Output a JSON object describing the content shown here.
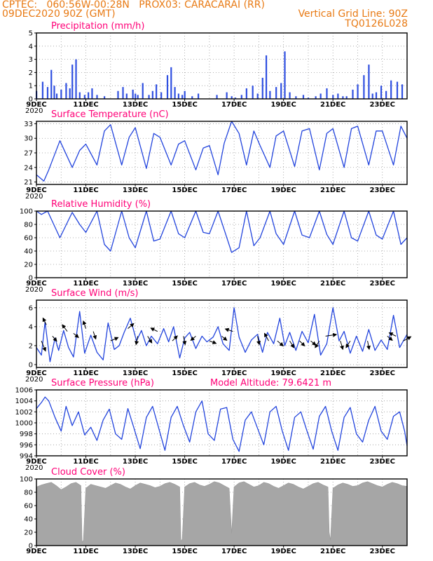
{
  "header": {
    "line1": "CPTEC:   060:56W-00:28N   PROX03: CARACARAI (RR)",
    "line2": "09DEC2020 90Z (GMT)",
    "grid_note": "Vertical Grid Line: 90Z",
    "code": "TQ0126L028"
  },
  "colors": {
    "header": "#e87a14",
    "title": "#ff0077",
    "line": "#2244dd",
    "bar": "#2f4fe0",
    "cloud": "#a6a6a6",
    "arrow": "#000000"
  },
  "chart_data": [
    {
      "type": "bar",
      "title": "Precipitation (mm/h)",
      "ylim": [
        0,
        5
      ],
      "yticks": [
        "0",
        "1",
        "2",
        "3",
        "4",
        "5"
      ],
      "x_ticks": [
        "9DEC",
        "11DEC",
        "13DEC",
        "15DEC",
        "17DEC",
        "19DEC",
        "21DEC",
        "23DEC"
      ],
      "year_label": "2020",
      "grid": true,
      "x_days": [
        9.0,
        9.25,
        9.45,
        9.6,
        9.72,
        9.82,
        10.0,
        10.2,
        10.35,
        10.45,
        10.6,
        10.75,
        10.95,
        11.1,
        11.25,
        11.45,
        11.75,
        12.3,
        12.5,
        12.65,
        12.9,
        13.0,
        13.1,
        13.3,
        13.55,
        13.7,
        13.85,
        14.05,
        14.3,
        14.45,
        14.6,
        14.75,
        14.9,
        15.0,
        15.3,
        15.55,
        16.3,
        16.7,
        16.9,
        17.05,
        17.3,
        17.5,
        17.75,
        17.95,
        18.15,
        18.3,
        18.45,
        18.7,
        18.9,
        19.05,
        19.25,
        19.5,
        19.8,
        20.0,
        20.3,
        20.5,
        20.75,
        21.0,
        21.2,
        21.4,
        21.55,
        21.8,
        22.0,
        22.25,
        22.45,
        22.6,
        22.75,
        22.95,
        23.15,
        23.35,
        23.6,
        23.8
      ],
      "values": [
        0.6,
        1.3,
        0.9,
        2.2,
        1.0,
        0.4,
        0.7,
        1.2,
        0.8,
        2.6,
        3.0,
        0.5,
        0.3,
        0.5,
        0.8,
        0.3,
        0.2,
        0.6,
        0.9,
        0.4,
        0.7,
        0.4,
        0.3,
        1.2,
        0.3,
        0.6,
        1.1,
        0.5,
        1.8,
        2.4,
        0.9,
        0.4,
        0.3,
        0.6,
        0.2,
        0.4,
        0.3,
        0.5,
        0.2,
        0.1,
        0.3,
        0.8,
        1.0,
        0.4,
        1.6,
        3.3,
        0.6,
        0.9,
        1.2,
        3.6,
        0.5,
        0.2,
        0.3,
        0.1,
        0.2,
        0.4,
        0.8,
        0.3,
        0.4,
        0.2,
        0.2,
        0.7,
        1.1,
        1.8,
        2.6,
        0.4,
        0.5,
        1.0,
        0.6,
        1.4,
        1.3,
        1.1
      ]
    },
    {
      "type": "line",
      "title": "Surface Temperature (nC)",
      "ylim": [
        20.5,
        33.5
      ],
      "yticks": [
        "21",
        "24",
        "27",
        "30",
        "33"
      ],
      "x_ticks": [
        "9DEC",
        "11DEC",
        "13DEC",
        "15DEC",
        "17DEC",
        "19DEC",
        "21DEC",
        "23DEC"
      ],
      "year_label": "2020",
      "grid": true,
      "x_days": [
        9.0,
        9.3,
        9.5,
        9.95,
        10.45,
        10.75,
        11.0,
        11.45,
        11.75,
        12.0,
        12.45,
        12.75,
        13.0,
        13.45,
        13.75,
        14.0,
        14.45,
        14.75,
        15.0,
        15.45,
        15.75,
        16.0,
        16.35,
        16.6,
        16.9,
        17.2,
        17.5,
        17.8,
        18.05,
        18.45,
        18.7,
        19.0,
        19.45,
        19.75,
        20.05,
        20.45,
        20.75,
        21.0,
        21.45,
        21.75,
        22.0,
        22.45,
        22.75,
        23.0,
        23.45,
        23.75,
        24.0
      ],
      "values": [
        22.5,
        21.2,
        23.5,
        29.5,
        24.0,
        27.5,
        28.8,
        24.5,
        31.5,
        32.8,
        24.5,
        30.2,
        32.2,
        23.8,
        31.0,
        30.2,
        24.5,
        28.8,
        29.5,
        23.5,
        28.0,
        28.5,
        22.5,
        29.0,
        33.5,
        31.0,
        24.5,
        31.5,
        28.5,
        24.0,
        30.5,
        31.5,
        24.2,
        31.5,
        32.0,
        23.5,
        31.0,
        32.0,
        24.0,
        32.0,
        32.5,
        24.5,
        31.5,
        31.5,
        24.5,
        32.5,
        30.0
      ]
    },
    {
      "type": "line",
      "title": "Relative Humidity (%)",
      "ylim": [
        0,
        100
      ],
      "yticks": [
        "0",
        "20",
        "40",
        "60",
        "80",
        "100"
      ],
      "x_ticks": [
        "9DEC",
        "11DEC",
        "13DEC",
        "15DEC",
        "17DEC",
        "19DEC",
        "21DEC",
        "23DEC"
      ],
      "year_label": "2020",
      "grid": true,
      "x_days": [
        9.0,
        9.2,
        9.45,
        9.95,
        10.45,
        10.75,
        11.0,
        11.45,
        11.75,
        12.0,
        12.45,
        12.75,
        13.0,
        13.45,
        13.75,
        14.0,
        14.45,
        14.75,
        15.0,
        15.45,
        15.75,
        16.0,
        16.35,
        16.6,
        16.9,
        17.2,
        17.5,
        17.8,
        18.05,
        18.45,
        18.7,
        19.0,
        19.45,
        19.75,
        20.05,
        20.45,
        20.75,
        21.0,
        21.45,
        21.75,
        22.0,
        22.45,
        22.75,
        23.0,
        23.45,
        23.75,
        24.0
      ],
      "values": [
        100,
        95,
        100,
        60,
        98,
        80,
        68,
        100,
        50,
        40,
        100,
        60,
        45,
        100,
        55,
        58,
        100,
        66,
        60,
        100,
        68,
        66,
        100,
        72,
        38,
        45,
        100,
        48,
        60,
        100,
        66,
        50,
        100,
        64,
        60,
        100,
        65,
        50,
        100,
        60,
        55,
        100,
        64,
        58,
        100,
        50,
        60
      ]
    },
    {
      "type": "line",
      "title": "Surface Wind (m/s)",
      "ylim": [
        -0.3,
        6.8
      ],
      "yticks": [
        "0",
        "2",
        "4",
        "6"
      ],
      "x_ticks": [
        "9DEC",
        "11DEC",
        "13DEC",
        "15DEC",
        "17DEC",
        "19DEC",
        "21DEC",
        "23DEC"
      ],
      "year_label": "2020",
      "grid": true,
      "x_days": [
        9.0,
        9.2,
        9.35,
        9.55,
        9.75,
        9.9,
        10.1,
        10.3,
        10.5,
        10.75,
        10.95,
        11.2,
        11.45,
        11.7,
        11.9,
        12.15,
        12.35,
        12.55,
        12.8,
        13.05,
        13.25,
        13.45,
        13.65,
        13.9,
        14.15,
        14.35,
        14.55,
        14.8,
        15.0,
        15.2,
        15.45,
        15.7,
        15.9,
        16.15,
        16.35,
        16.55,
        16.8,
        17.0,
        17.2,
        17.45,
        17.7,
        17.95,
        18.15,
        18.35,
        18.6,
        18.85,
        19.05,
        19.25,
        19.5,
        19.75,
        20.0,
        20.25,
        20.5,
        20.75,
        21.0,
        21.25,
        21.45,
        21.7,
        21.95,
        22.2,
        22.45,
        22.7,
        22.95,
        23.2,
        23.45,
        23.7,
        24.0
      ],
      "values": [
        1.8,
        1.0,
        4.5,
        0.3,
        2.8,
        1.5,
        3.6,
        1.8,
        0.8,
        5.6,
        1.2,
        3.1,
        1.3,
        0.5,
        4.4,
        1.6,
        2.0,
        3.4,
        4.9,
        2.5,
        3.6,
        2.0,
        3.0,
        2.2,
        3.8,
        2.4,
        4.0,
        0.7,
        2.8,
        3.4,
        1.7,
        3.0,
        2.4,
        2.9,
        4.0,
        2.2,
        1.5,
        6.0,
        2.9,
        1.3,
        2.6,
        3.2,
        1.3,
        3.4,
        2.2,
        4.9,
        2.0,
        3.4,
        1.5,
        3.5,
        2.3,
        5.3,
        1.0,
        2.2,
        6.0,
        2.5,
        3.5,
        1.2,
        3.0,
        1.4,
        3.7,
        1.5,
        2.6,
        1.6,
        5.2,
        1.8,
        3.2
      ],
      "vectors": [
        {
          "x": 9.2,
          "y": 2.5,
          "u": 0.5,
          "v": -1.2
        },
        {
          "x": 9.4,
          "y": 4.2,
          "u": -0.4,
          "v": 0.8
        },
        {
          "x": 9.65,
          "y": 3.0,
          "u": 0.5,
          "v": -0.6
        },
        {
          "x": 10.25,
          "y": 3.5,
          "u": -0.6,
          "v": 0.8
        },
        {
          "x": 10.5,
          "y": 3.3,
          "u": 0.6,
          "v": -0.5
        },
        {
          "x": 11.0,
          "y": 3.8,
          "u": -0.3,
          "v": 0.9
        },
        {
          "x": 11.3,
          "y": 3.5,
          "u": 0.3,
          "v": -0.9
        },
        {
          "x": 12.0,
          "y": 2.5,
          "u": 0.9,
          "v": 0.4
        },
        {
          "x": 12.7,
          "y": 3.8,
          "u": 0.7,
          "v": 0.6
        },
        {
          "x": 13.1,
          "y": 3.0,
          "u": -0.2,
          "v": -1.0
        },
        {
          "x": 13.5,
          "y": 3.0,
          "u": 0.5,
          "v": -0.8
        },
        {
          "x": 13.9,
          "y": 3.5,
          "u": -0.8,
          "v": 0.4
        },
        {
          "x": 14.5,
          "y": 2.5,
          "u": 0.6,
          "v": 0.6
        },
        {
          "x": 14.95,
          "y": 3.0,
          "u": 0.2,
          "v": -1.0
        },
        {
          "x": 15.45,
          "y": 3.0,
          "u": -0.6,
          "v": -0.5
        },
        {
          "x": 16.0,
          "y": 2.5,
          "u": 0.8,
          "v": -0.3
        },
        {
          "x": 16.5,
          "y": 3.0,
          "u": 0.6,
          "v": -0.5
        },
        {
          "x": 16.95,
          "y": 3.5,
          "u": -0.9,
          "v": 0.3
        },
        {
          "x": 17.95,
          "y": 3.0,
          "u": 0.2,
          "v": -1.0
        },
        {
          "x": 18.4,
          "y": 2.5,
          "u": -0.5,
          "v": 0.9
        },
        {
          "x": 18.75,
          "y": 2.5,
          "u": 0.7,
          "v": -0.6
        },
        {
          "x": 19.25,
          "y": 2.5,
          "u": 0.5,
          "v": -0.8
        },
        {
          "x": 19.65,
          "y": 2.5,
          "u": 0.6,
          "v": -0.6
        },
        {
          "x": 20.1,
          "y": 2.5,
          "u": 0.6,
          "v": -0.5
        },
        {
          "x": 20.45,
          "y": 2.5,
          "u": -0.5,
          "v": -0.8
        },
        {
          "x": 20.7,
          "y": 3.0,
          "u": 1.3,
          "v": 0.2
        },
        {
          "x": 21.3,
          "y": 2.5,
          "u": 0.3,
          "v": -1.0
        },
        {
          "x": 21.7,
          "y": 2.5,
          "u": -0.5,
          "v": -0.8
        },
        {
          "x": 22.4,
          "y": 2.5,
          "u": 0.2,
          "v": -1.0
        },
        {
          "x": 23.2,
          "y": 3.0,
          "u": 0.6,
          "v": -0.5
        },
        {
          "x": 23.55,
          "y": 3.0,
          "u": -0.8,
          "v": 0.4
        },
        {
          "x": 23.85,
          "y": 2.5,
          "u": 0.9,
          "v": 0.5
        }
      ]
    },
    {
      "type": "line",
      "title": "Surface Pressure (hPa)",
      "annotation": "Model Altitude: 79.6421  m",
      "ylim": [
        994,
        1006
      ],
      "yticks": [
        "994",
        "996",
        "998",
        "1000",
        "1002",
        "1004",
        "1006"
      ],
      "x_ticks": [
        "9DEC",
        "11DEC",
        "13DEC",
        "15DEC",
        "17DEC",
        "19DEC",
        "21DEC",
        "23DEC"
      ],
      "year_label": "2020",
      "grid": true,
      "x_days": [
        9.0,
        9.2,
        9.35,
        9.5,
        9.75,
        10.0,
        10.2,
        10.45,
        10.7,
        10.95,
        11.2,
        11.45,
        11.7,
        11.95,
        12.2,
        12.45,
        12.7,
        12.95,
        13.2,
        13.45,
        13.7,
        13.95,
        14.2,
        14.45,
        14.7,
        14.95,
        15.2,
        15.45,
        15.7,
        15.95,
        16.2,
        16.45,
        16.7,
        16.95,
        17.2,
        17.45,
        17.7,
        17.95,
        18.2,
        18.45,
        18.7,
        18.95,
        19.2,
        19.45,
        19.7,
        19.95,
        20.2,
        20.45,
        20.7,
        20.95,
        21.2,
        21.45,
        21.7,
        21.95,
        22.2,
        22.45,
        22.7,
        22.95,
        23.2,
        23.45,
        23.7,
        23.9,
        24.0
      ],
      "values": [
        1002.6,
        1003.7,
        1004.7,
        1004.0,
        1001.0,
        998.5,
        1003.0,
        999.5,
        1002.0,
        997.8,
        999.2,
        996.8,
        1000.5,
        1002.5,
        998.0,
        997.0,
        1002.6,
        999.0,
        995.3,
        1001.0,
        1003.0,
        999.0,
        995.0,
        1001.0,
        1003.0,
        999.5,
        996.5,
        1002.0,
        1004.0,
        998.0,
        996.8,
        1002.5,
        1002.8,
        997.0,
        994.8,
        1000.5,
        1002.0,
        999.0,
        996.0,
        1002.0,
        1003.0,
        998.5,
        995.0,
        1001.0,
        1002.0,
        998.5,
        995.2,
        1001.2,
        1003.0,
        998.5,
        995.0,
        1001.0,
        1002.8,
        998.0,
        996.5,
        1000.5,
        1003.0,
        998.5,
        997.0,
        1001.2,
        1002.0,
        998.5,
        995.8
      ]
    },
    {
      "type": "area",
      "title": "Cloud Cover (%)",
      "ylim": [
        0,
        100
      ],
      "yticks": [
        "0",
        "20",
        "40",
        "60",
        "80",
        "100"
      ],
      "x_ticks": [
        "9DEC",
        "11DEC",
        "13DEC",
        "15DEC",
        "17DEC",
        "19DEC",
        "21DEC",
        "23DEC"
      ],
      "grid": true,
      "x_days": [
        9.0,
        9.2,
        9.4,
        9.6,
        9.8,
        10.0,
        10.2,
        10.4,
        10.6,
        10.8,
        10.85,
        10.9,
        11.0,
        11.2,
        11.4,
        11.6,
        11.8,
        12.0,
        12.2,
        12.4,
        12.6,
        12.8,
        13.0,
        13.2,
        13.4,
        13.6,
        13.8,
        14.0,
        14.2,
        14.4,
        14.6,
        14.8,
        14.85,
        14.9,
        15.0,
        15.2,
        15.4,
        15.6,
        15.8,
        16.0,
        16.2,
        16.4,
        16.6,
        16.8,
        16.9,
        17.0,
        17.2,
        17.4,
        17.6,
        17.8,
        18.0,
        18.2,
        18.4,
        18.6,
        18.8,
        19.0,
        19.2,
        19.4,
        19.6,
        19.8,
        20.0,
        20.2,
        20.4,
        20.6,
        20.8,
        20.85,
        20.9,
        21.0,
        21.2,
        21.4,
        21.6,
        21.8,
        22.0,
        22.2,
        22.4,
        22.6,
        22.8,
        23.0,
        23.2,
        23.4,
        23.6,
        23.8,
        24.0
      ],
      "values": [
        88,
        91,
        93,
        95,
        90,
        84,
        88,
        93,
        95,
        90,
        5,
        8,
        86,
        92,
        90,
        88,
        86,
        90,
        94,
        92,
        88,
        85,
        90,
        94,
        92,
        90,
        87,
        89,
        93,
        95,
        92,
        88,
        6,
        10,
        88,
        93,
        95,
        91,
        89,
        92,
        96,
        94,
        90,
        86,
        18,
        88,
        94,
        96,
        92,
        88,
        90,
        95,
        93,
        89,
        86,
        90,
        94,
        92,
        88,
        85,
        89,
        93,
        95,
        91,
        88,
        20,
        8,
        86,
        91,
        94,
        92,
        89,
        90,
        94,
        96,
        93,
        90,
        88,
        92,
        95,
        93,
        90,
        89
      ]
    }
  ]
}
